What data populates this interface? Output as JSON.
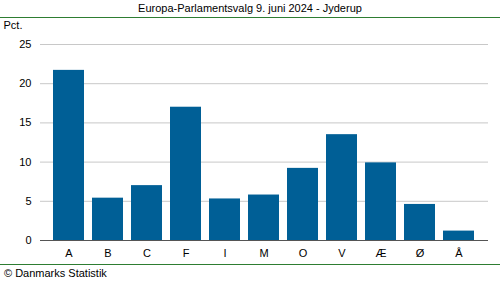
{
  "chart_data": {
    "type": "bar",
    "title": "Europa-Parlamentsvalg 9. juni 2024 - Jyderup",
    "y_label": "Pct.",
    "caption": "© Danmarks Statistik",
    "categories": [
      "A",
      "B",
      "C",
      "F",
      "I",
      "M",
      "O",
      "V",
      "Æ",
      "Ø",
      "Å"
    ],
    "values": [
      21.7,
      5.4,
      7.0,
      17.0,
      5.3,
      5.8,
      9.2,
      13.5,
      9.9,
      4.6,
      1.2
    ],
    "color": "#005f96",
    "ylim": [
      0,
      25
    ],
    "yticks": [
      0,
      5,
      10,
      15,
      20,
      25
    ],
    "grid": true
  }
}
